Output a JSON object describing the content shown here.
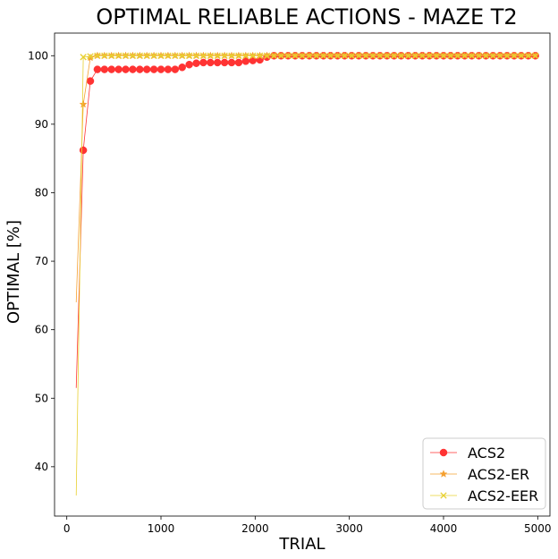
{
  "chart_data": {
    "type": "line",
    "title": "OPTIMAL RELIABLE ACTIONS - MAZE T2",
    "xlabel": "TRIAL",
    "ylabel": "OPTIMAL [%]",
    "xlim": [
      -130,
      5130
    ],
    "ylim": [
      32.8,
      103.3
    ],
    "xticks": [
      0,
      1000,
      2000,
      3000,
      4000,
      5000
    ],
    "yticks": [
      40,
      50,
      60,
      70,
      80,
      90,
      100
    ],
    "legend_position": "lower right",
    "grid": false,
    "series": [
      {
        "name": "ACS2",
        "color": "#ff3333",
        "marker": "circle",
        "x": [
          100,
          175,
          250,
          325,
          400,
          475,
          550,
          625,
          700,
          775,
          850,
          925,
          1000,
          1075,
          1150,
          1225,
          1300,
          1375,
          1450,
          1525,
          1600,
          1675,
          1750,
          1825,
          1900,
          1975,
          2050,
          2125,
          2200,
          2275,
          2350,
          2425,
          2500,
          2575,
          2650,
          2725,
          2800,
          2875,
          2950,
          3025,
          3100,
          3175,
          3250,
          3325,
          3400,
          3475,
          3550,
          3625,
          3700,
          3775,
          3850,
          3925,
          4000,
          4075,
          4150,
          4225,
          4300,
          4375,
          4450,
          4525,
          4600,
          4675,
          4750,
          4825,
          4900,
          4975
        ],
        "y": [
          51.5,
          86.2,
          96.3,
          98.0,
          98.0,
          98.0,
          98.0,
          98.0,
          98.0,
          98.0,
          98.0,
          98.0,
          98.0,
          98.0,
          98.0,
          98.3,
          98.7,
          98.9,
          99.0,
          99.0,
          99.0,
          99.0,
          99.0,
          99.0,
          99.2,
          99.3,
          99.4,
          99.8,
          100,
          100,
          100,
          100,
          100,
          100,
          100,
          100,
          100,
          100,
          100,
          100,
          100,
          100,
          100,
          100,
          100,
          100,
          100,
          100,
          100,
          100,
          100,
          100,
          100,
          100,
          100,
          100,
          100,
          100,
          100,
          100,
          100,
          100,
          100,
          100,
          100,
          100
        ]
      },
      {
        "name": "ACS2-ER",
        "color": "#f5a030",
        "marker": "star",
        "x": [
          100,
          175,
          250,
          325,
          400,
          475,
          550,
          625,
          700,
          775,
          850,
          925,
          1000,
          1075,
          1150,
          1225,
          1300,
          1375,
          1450,
          1525,
          1600,
          1675,
          1750,
          1825,
          1900,
          1975,
          2050,
          2125,
          2200,
          2275,
          2350,
          2425,
          2500,
          2575,
          2650,
          2725,
          2800,
          2875,
          2950,
          3025,
          3100,
          3175,
          3250,
          3325,
          3400,
          3475,
          3550,
          3625,
          3700,
          3775,
          3850,
          3925,
          4000,
          4075,
          4150,
          4225,
          4300,
          4375,
          4450,
          4525,
          4600,
          4675,
          4750,
          4825,
          4900,
          4975
        ],
        "y": [
          64.0,
          92.9,
          99.7,
          100,
          100,
          100,
          100,
          100,
          100,
          100,
          100,
          100,
          100,
          100,
          100,
          100,
          100,
          100,
          100,
          100,
          100,
          100,
          100,
          100,
          100,
          100,
          100,
          100,
          100,
          100,
          100,
          100,
          100,
          100,
          100,
          100,
          100,
          100,
          100,
          100,
          100,
          100,
          100,
          100,
          100,
          100,
          100,
          100,
          100,
          100,
          100,
          100,
          100,
          100,
          100,
          100,
          100,
          100,
          100,
          100,
          100,
          100,
          100,
          100,
          100,
          100
        ]
      },
      {
        "name": "ACS2-EER",
        "color": "#e8d030",
        "marker": "x",
        "x": [
          100,
          175,
          250,
          325,
          400,
          475,
          550,
          625,
          700,
          775,
          850,
          925,
          1000,
          1075,
          1150,
          1225,
          1300,
          1375,
          1450,
          1525,
          1600,
          1675,
          1750,
          1825,
          1900,
          1975,
          2050,
          2125,
          2200,
          2275,
          2350,
          2425,
          2500,
          2575,
          2650,
          2725,
          2800,
          2875,
          2950,
          3025,
          3100,
          3175,
          3250,
          3325,
          3400,
          3475,
          3550,
          3625,
          3700,
          3775,
          3850,
          3925,
          4000,
          4075,
          4150,
          4225,
          4300,
          4375,
          4450,
          4525,
          4600,
          4675,
          4750,
          4825,
          4900,
          4975
        ],
        "y": [
          35.8,
          99.8,
          99.9,
          100,
          100,
          100,
          100,
          100,
          100,
          100,
          100,
          100,
          100,
          100,
          100,
          100,
          100,
          100,
          100,
          100,
          100,
          100,
          100,
          100,
          100,
          100,
          100,
          100,
          100,
          100,
          100,
          100,
          100,
          100,
          100,
          100,
          100,
          100,
          100,
          100,
          100,
          100,
          100,
          100,
          100,
          100,
          100,
          100,
          100,
          100,
          100,
          100,
          100,
          100,
          100,
          100,
          100,
          100,
          100,
          100,
          100,
          100,
          100,
          100,
          100,
          100
        ]
      }
    ]
  }
}
